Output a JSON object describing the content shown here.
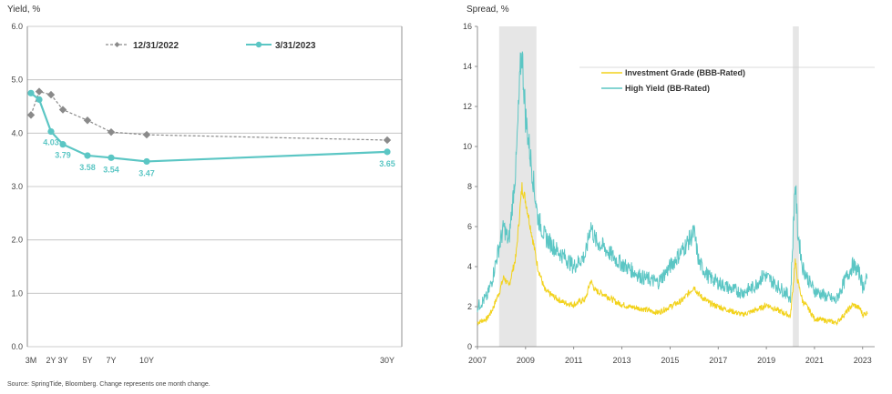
{
  "source_note": "Source: SpringTide, Bloomberg. Change represents one month change.",
  "colors": {
    "teal": "#5bc6c4",
    "gray_marker": "#8a8a8a",
    "yellow": "#f2d21b",
    "recession": "#e6e6e6",
    "grid": "#bdbdbd",
    "axis": "#777777"
  },
  "chart_data": [
    {
      "type": "line",
      "ylabel": "Yield, %",
      "xlabel": "",
      "ylim": [
        0,
        6
      ],
      "yticks": [
        "0.0",
        "1.0",
        "2.0",
        "3.0",
        "4.0",
        "5.0",
        "6.0"
      ],
      "grid": "horizontal",
      "legend_position": "top",
      "x_years": [
        0.25,
        1,
        2,
        3,
        5,
        7,
        10,
        30
      ],
      "x_tick_labels": [
        "3M",
        "",
        "2Y",
        "3Y",
        "5Y",
        "7Y",
        "10Y",
        "30Y"
      ],
      "series": [
        {
          "name": "12/31/2022",
          "style": "dashed-diamond",
          "values": [
            4.34,
            4.78,
            4.72,
            4.44,
            4.24,
            4.02,
            3.97,
            3.87
          ]
        },
        {
          "name": "3/31/2023",
          "style": "solid-circle",
          "values": [
            4.75,
            4.63,
            4.03,
            3.79,
            3.58,
            3.54,
            3.47,
            3.65
          ],
          "data_labels": [
            "",
            "",
            "4.03",
            "3.79",
            "3.58",
            "3.54",
            "3.47",
            "3.65"
          ]
        }
      ]
    },
    {
      "type": "line",
      "ylabel": "Spread, %",
      "xlabel": "",
      "ylim": [
        0,
        16
      ],
      "xlim": [
        2007,
        2023.5
      ],
      "yticks": [
        "0",
        "2",
        "4",
        "6",
        "8",
        "10",
        "12",
        "14",
        "16"
      ],
      "xticks": [
        "2007",
        "2009",
        "2011",
        "2013",
        "2015",
        "2017",
        "2019",
        "2021",
        "2023"
      ],
      "grid": "none",
      "legend_position": "top-center",
      "recession_shading": [
        [
          2007.9,
          2009.45
        ],
        [
          2020.1,
          2020.35
        ]
      ],
      "series": [
        {
          "name": "Investment Grade (BBB-Rated)",
          "color": "yellow",
          "x": [
            2007.0,
            2007.4,
            2007.6,
            2007.9,
            2008.1,
            2008.3,
            2008.6,
            2008.85,
            2009.0,
            2009.2,
            2009.5,
            2009.8,
            2010.3,
            2010.6,
            2011.0,
            2011.5,
            2011.7,
            2011.9,
            2012.3,
            2012.8,
            2013.3,
            2013.8,
            2014.5,
            2015.0,
            2015.5,
            2016.0,
            2016.2,
            2016.6,
            2017.0,
            2017.5,
            2018.0,
            2018.5,
            2018.9,
            2019.0,
            2019.5,
            2019.9,
            2020.0,
            2020.2,
            2020.3,
            2020.5,
            2020.8,
            2021.0,
            2021.5,
            2021.9,
            2022.0,
            2022.3,
            2022.6,
            2022.9,
            2023.0,
            2023.2
          ],
          "values": [
            1.2,
            1.4,
            1.8,
            2.7,
            3.5,
            3.0,
            4.5,
            8.0,
            7.3,
            6.0,
            4.0,
            2.8,
            2.4,
            2.2,
            2.1,
            2.4,
            3.3,
            2.8,
            2.6,
            2.2,
            2.0,
            1.9,
            1.7,
            2.0,
            2.3,
            3.0,
            2.6,
            2.2,
            2.0,
            1.8,
            1.6,
            1.8,
            2.0,
            2.1,
            1.8,
            1.6,
            1.5,
            4.3,
            3.3,
            2.3,
            1.8,
            1.4,
            1.3,
            1.2,
            1.3,
            1.7,
            2.1,
            1.9,
            1.6,
            1.7
          ]
        },
        {
          "name": "High Yield (BB-Rated)",
          "color": "teal",
          "x": [
            2007.0,
            2007.4,
            2007.6,
            2007.9,
            2008.1,
            2008.3,
            2008.6,
            2008.8,
            2008.85,
            2009.0,
            2009.2,
            2009.5,
            2009.8,
            2010.3,
            2010.6,
            2011.0,
            2011.5,
            2011.7,
            2011.9,
            2012.3,
            2012.8,
            2013.3,
            2013.8,
            2014.5,
            2015.0,
            2015.5,
            2016.0,
            2016.2,
            2016.6,
            2017.0,
            2017.5,
            2018.0,
            2018.5,
            2018.9,
            2019.0,
            2019.5,
            2019.9,
            2020.0,
            2020.2,
            2020.3,
            2020.5,
            2020.8,
            2021.0,
            2021.5,
            2021.9,
            2022.0,
            2022.3,
            2022.6,
            2022.9,
            2023.0,
            2023.2
          ],
          "values": [
            2.0,
            2.5,
            3.3,
            5.0,
            6.0,
            5.2,
            9.0,
            14.2,
            14.7,
            11.5,
            9.5,
            6.5,
            5.5,
            4.8,
            4.5,
            4.0,
            4.6,
            6.1,
            5.3,
            4.9,
            4.3,
            3.9,
            3.5,
            3.2,
            4.0,
            4.8,
            5.7,
            4.2,
            3.5,
            3.2,
            2.9,
            2.7,
            3.0,
            3.6,
            3.5,
            3.0,
            2.6,
            2.4,
            8.3,
            5.8,
            4.0,
            3.2,
            2.8,
            2.5,
            2.3,
            2.6,
            3.4,
            4.1,
            3.6,
            3.0,
            3.4
          ]
        }
      ]
    }
  ]
}
